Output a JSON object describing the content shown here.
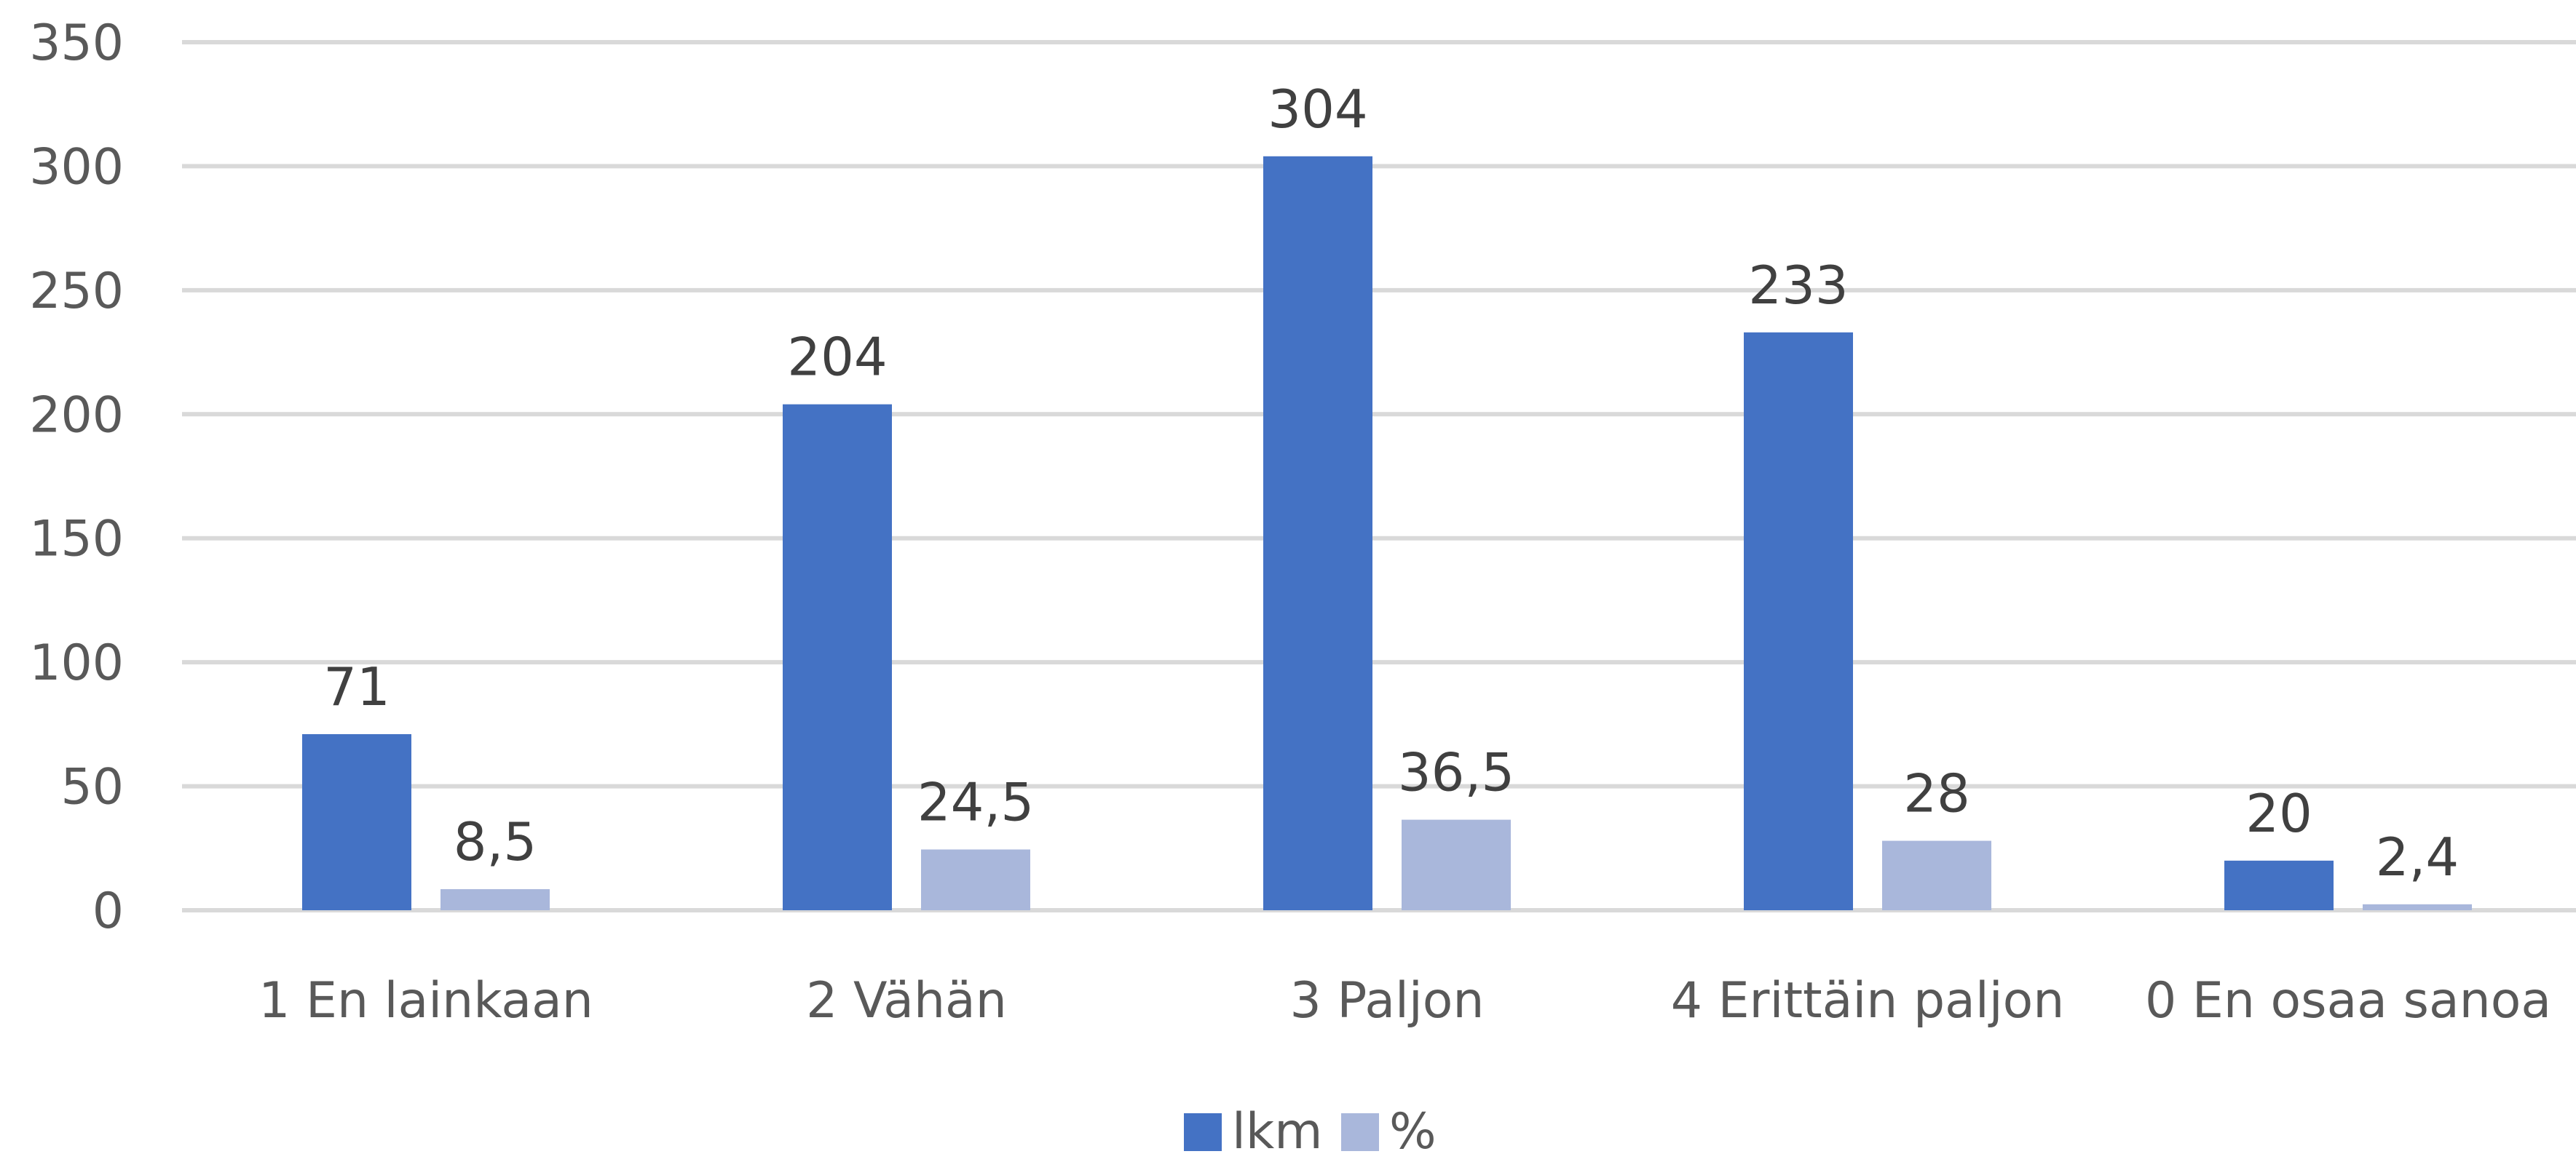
{
  "chart_data": {
    "type": "bar",
    "categories": [
      "1 En lainkaan",
      "2 Vähän",
      "3 Paljon",
      "4 Erittäin paljon",
      "0 En osaa sanoa"
    ],
    "series": [
      {
        "name": "lkm",
        "values": [
          71,
          204,
          304,
          233,
          20
        ],
        "labels": [
          "71",
          "204",
          "304",
          "233",
          "20"
        ],
        "color": "#4472C4"
      },
      {
        "name": "%",
        "values": [
          8.5,
          24.5,
          36.5,
          28,
          2.4
        ],
        "labels": [
          "8,5",
          "24,5",
          "36,5",
          "28",
          "2,4"
        ],
        "color": "#A9B7DB"
      }
    ],
    "ylim": [
      0,
      350
    ],
    "yticks": [
      0,
      50,
      100,
      150,
      200,
      250,
      300,
      350
    ],
    "ytick_labels": [
      "0",
      "50",
      "100",
      "150",
      "200",
      "250",
      "300",
      "350"
    ],
    "grid": true,
    "gridline_color": "#D9D9D9",
    "legend_position": "bottom",
    "title": "",
    "xlabel": "",
    "ylabel": ""
  }
}
